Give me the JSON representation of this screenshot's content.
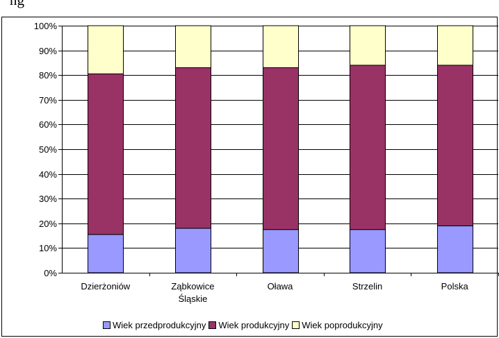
{
  "header_fragment": "ng",
  "chart_data": {
    "type": "bar",
    "stacked": true,
    "percent": true,
    "categories": [
      "Dzierżoniów",
      "Ząbkowice Śląskie",
      "Oława",
      "Strzelin",
      "Polska"
    ],
    "category_label_lines": [
      [
        "Dzierżoniów"
      ],
      [
        "Ząbkowice",
        "Śląskie"
      ],
      [
        "Oława"
      ],
      [
        "Strzelin"
      ],
      [
        "Polska"
      ]
    ],
    "series": [
      {
        "name": "Wiek przedprodukcyjny",
        "color": "#9999FF",
        "values": [
          15.5,
          18,
          17.5,
          17.5,
          19
        ]
      },
      {
        "name": "Wiek produkcyjny",
        "color": "#993366",
        "values": [
          65,
          65,
          65.5,
          66.5,
          65
        ]
      },
      {
        "name": "Wiek poprodukcyjny",
        "color": "#FFFFCC",
        "values": [
          19.5,
          17,
          17,
          16,
          16
        ]
      }
    ],
    "yticks": [
      "0%",
      "10%",
      "20%",
      "30%",
      "40%",
      "50%",
      "60%",
      "70%",
      "80%",
      "90%",
      "100%"
    ],
    "ylim": [
      0,
      100
    ],
    "grid": true,
    "legend_position": "bottom",
    "title": "",
    "xlabel": "",
    "ylabel": ""
  }
}
